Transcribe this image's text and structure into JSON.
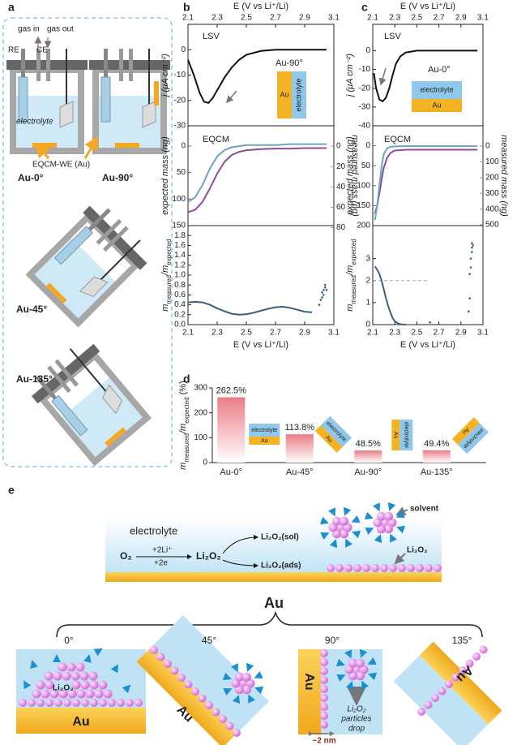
{
  "panel_labels": [
    "a",
    "b",
    "c",
    "d",
    "e"
  ],
  "panel_a": {
    "gas_in": "gas in",
    "gas_out": "gas out",
    "re": "RE",
    "ce": "CE",
    "electrolyte": "electrolyte",
    "we": "EQCM-WE (Au)",
    "cells": [
      "Au-0°",
      "Au-90°",
      "Au-45°",
      "Au-135°"
    ]
  },
  "chart_data": [
    {
      "type": "line",
      "annotations": [
        "LSV",
        "Au-90°"
      ],
      "inset_labels": [
        "Au",
        "electrolyte"
      ],
      "xlabel": "E (V vs Li⁺/Li)",
      "ylabel": "j (μA cm⁻²)",
      "x": [
        2.1,
        2.14,
        2.18,
        2.21,
        2.24,
        2.27,
        2.3,
        2.35,
        2.4,
        2.45,
        2.5,
        2.6,
        2.7,
        2.8,
        2.9,
        3.0,
        3.05
      ],
      "series": [
        {
          "color": "#111111",
          "values": [
            -4,
            -10,
            -17,
            -20.5,
            -21,
            -19,
            -16,
            -11,
            -7,
            -4,
            -2,
            -0.5,
            0,
            0,
            0,
            0,
            0
          ]
        }
      ],
      "xlim": [
        2.1,
        3.1
      ],
      "xticks": [
        2.1,
        2.3,
        2.5,
        2.7,
        2.9,
        3.1
      ],
      "ylim": [
        -30,
        10
      ],
      "yticks": [
        0,
        -10,
        -20,
        -30
      ]
    },
    {
      "type": "line",
      "annotations": [
        "EQCM"
      ],
      "ylabel": "expected mass (ng)",
      "y2label": "measured mass (ng)",
      "x": [
        2.1,
        2.15,
        2.2,
        2.25,
        2.3,
        2.35,
        2.4,
        2.45,
        2.5,
        2.6,
        2.7,
        2.8,
        2.9,
        3.0,
        3.05
      ],
      "series": [
        {
          "color": "#8e4a9e",
          "values": [
            125,
            120,
            105,
            80,
            52,
            30,
            17,
            11,
            8,
            6,
            5,
            5,
            4,
            4,
            4
          ]
        },
        {
          "color": "#6fa3c4",
          "axis": "y2",
          "values": [
            55,
            50,
            38,
            22,
            10,
            4,
            1,
            0,
            -1,
            -1,
            -1,
            -2,
            -2,
            -2,
            -2
          ]
        }
      ],
      "xlim": [
        2.1,
        3.1
      ],
      "ylim": [
        150,
        -38
      ],
      "yticks": [
        0,
        50,
        100,
        150
      ],
      "y2lim": [
        78,
        -20
      ],
      "y2ticks": [
        0,
        20,
        40,
        60,
        80
      ]
    },
    {
      "type": "line",
      "xlabel": "E (V vs Li⁺/Li)",
      "ylabel_parts": [
        "m",
        "measured",
        "/m",
        "expected"
      ],
      "series": [
        {
          "color": "#3d5f80",
          "x": [
            2.1,
            2.15,
            2.2,
            2.25,
            2.3,
            2.35,
            2.4,
            2.45,
            2.5,
            2.55,
            2.6,
            2.65,
            2.7,
            2.75,
            2.8,
            2.85,
            2.9,
            2.95
          ],
          "values": [
            0.45,
            0.46,
            0.45,
            0.4,
            0.33,
            0.27,
            0.22,
            0.2,
            0.21,
            0.24,
            0.28,
            0.32,
            0.35,
            0.36,
            0.34,
            0.3,
            0.26,
            0.25
          ]
        },
        {
          "color": "#3d5f80",
          "marker": "dot",
          "x": [
            3.0,
            3.01,
            3.02,
            3.02,
            3.03,
            3.03,
            3.04,
            3.04,
            3.05
          ],
          "values": [
            0.4,
            0.5,
            0.55,
            0.65,
            0.6,
            0.7,
            0.75,
            0.8,
            0.7
          ]
        }
      ],
      "xlim": [
        2.1,
        3.1
      ],
      "xticks": [
        2.1,
        2.3,
        2.5,
        2.7,
        2.9,
        3.1
      ],
      "ylim": [
        0,
        2
      ],
      "yticks": [
        {
          "value": 0,
          "label": "0.0"
        },
        0.2,
        0.4,
        0.6,
        0.8,
        {
          "value": 1,
          "label": "1.0"
        },
        1.2,
        1.4,
        1.6,
        1.8
      ]
    },
    {
      "type": "line",
      "annotations": [
        "LSV",
        "Au-0°"
      ],
      "inset_labels": [
        "electrolyte",
        "Au"
      ],
      "xlabel": "E (V vs Li⁺/Li)",
      "ylabel": "j (μA cm⁻²)",
      "x": [
        2.11,
        2.13,
        2.16,
        2.19,
        2.22,
        2.25,
        2.28,
        2.31,
        2.35,
        2.4,
        2.5,
        2.7,
        2.9,
        3.05
      ],
      "series": [
        {
          "color": "#111111",
          "values": [
            -12,
            -20,
            -26,
            -27,
            -25,
            -20,
            -13,
            -7,
            -3,
            -1,
            0,
            0,
            0,
            0
          ]
        }
      ],
      "xlim": [
        2.1,
        3.1
      ],
      "xticks": [
        2.1,
        2.3,
        2.5,
        2.7,
        2.9,
        3.1
      ],
      "ylim": [
        -40,
        14
      ],
      "yticks": [
        0,
        -10,
        -20,
        -30,
        -40
      ]
    },
    {
      "type": "line",
      "annotations": [
        "EQCM"
      ],
      "ylabel": "expected mass (ng)",
      "y2label": "measured mass (ng)",
      "x": [
        2.12,
        2.14,
        2.16,
        2.18,
        2.2,
        2.23,
        2.26,
        2.3,
        2.4,
        2.6,
        2.8,
        3.0,
        3.05
      ],
      "series": [
        {
          "color": "#8e4a9e",
          "values": [
            170,
            150,
            120,
            85,
            55,
            30,
            18,
            12,
            10,
            10,
            10,
            10,
            10
          ]
        },
        {
          "color": "#6fa3c4",
          "axis": "y2",
          "values": [
            470,
            380,
            250,
            130,
            50,
            15,
            5,
            2,
            0,
            0,
            0,
            0,
            0
          ]
        }
      ],
      "xlim": [
        2.1,
        3.1
      ],
      "ylim": [
        200,
        -50
      ],
      "yticks": [
        0,
        50,
        100,
        150,
        200
      ],
      "y2lim": [
        505,
        -129
      ],
      "y2ticks": [
        0,
        100,
        200,
        300,
        400,
        500
      ]
    },
    {
      "type": "line",
      "xlabel": "E (V vs Li⁺/Li)",
      "ylabel_parts": [
        "m",
        "measured",
        "/m",
        "expected"
      ],
      "hline": 2,
      "series": [
        {
          "color": "#3d5f80",
          "x": [
            2.12,
            2.14,
            2.16,
            2.18,
            2.2,
            2.22,
            2.24,
            2.26,
            2.28,
            2.3,
            2.33,
            2.36,
            2.4
          ],
          "values": [
            2.65,
            2.5,
            2.3,
            2.0,
            1.6,
            1.2,
            0.85,
            0.55,
            0.3,
            0.15,
            0.05,
            0.01,
            0
          ]
        },
        {
          "color": "#3d5f80",
          "marker": "dot",
          "x": [
            2.97,
            2.98,
            2.98,
            2.99,
            2.99,
            3.0,
            3.0,
            3.0,
            3.01,
            2.62
          ],
          "values": [
            0.6,
            1.2,
            2.3,
            2.6,
            3.0,
            3.3,
            3.5,
            3.7,
            3.6,
            0.1
          ]
        }
      ],
      "xlim": [
        2.1,
        3.1
      ],
      "xticks": [
        2.1,
        2.3,
        2.5,
        2.7,
        2.9,
        3.1
      ],
      "ylim": [
        0,
        4.5
      ],
      "yticks": [
        0,
        1,
        2,
        3
      ]
    },
    {
      "type": "bar",
      "categories": [
        "Au-0°",
        "Au-45°",
        "Au-90°",
        "Au-135°"
      ],
      "values": [
        262.5,
        113.8,
        48.5,
        49.4
      ],
      "value_labels": [
        "262.5%",
        "113.8%",
        "48.5%",
        "49.4%"
      ],
      "color": "#ea7d86",
      "ylim": [
        0,
        300
      ],
      "yticks": [
        0,
        100,
        200,
        300
      ],
      "ylabel_parts": [
        "m",
        "measured",
        "/m",
        "expected",
        " (%)"
      ],
      "inset_labels": [
        [
          "electrolyte",
          "Au"
        ],
        [
          "electrolyte",
          "Au"
        ],
        [
          "electrolyte",
          "Au"
        ],
        [
          "electrolyte",
          "Au"
        ]
      ]
    }
  ],
  "panel_e": {
    "electrolyte": "electrolyte",
    "o2": "O₂",
    "li": "+2Li⁺",
    "e": "+2e",
    "li2o2": "Li₂O₂",
    "sol": "Li₂O₂(sol)",
    "ads": "Li₂O₂(ads)",
    "solvent": "solvent",
    "li2o2_surface": "Li₂O₂",
    "au": "Au",
    "angles": [
      "0°",
      "45°",
      "90°",
      "135°"
    ],
    "au_labels": [
      "Au",
      "Au",
      "Au",
      "Au"
    ],
    "li2o2_0": "Li₂O₂",
    "particles": [
      "Li₂O₂",
      "particles",
      "drop"
    ],
    "nm": "~2 nm"
  }
}
